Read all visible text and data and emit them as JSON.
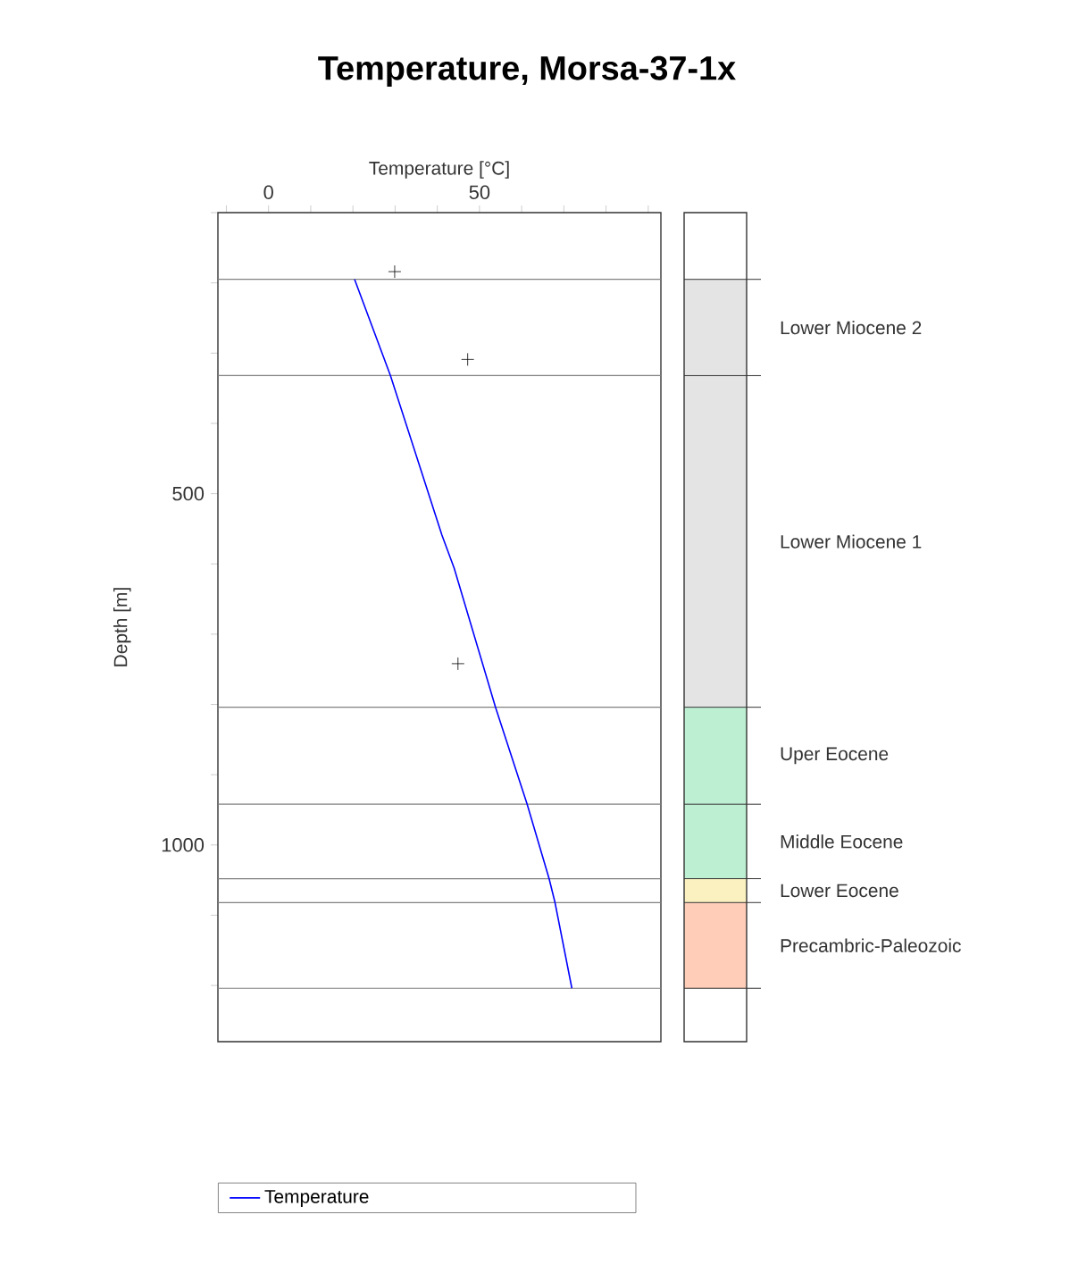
{
  "chart_data": {
    "type": "line",
    "title": "Temperature, Morsa-37-1x",
    "xlabel": "Temperature [°C]",
    "ylabel": "Depth [m]",
    "xlim": [
      -12,
      93
    ],
    "ylim": [
      1280,
      100
    ],
    "xticks": [
      {
        "value": -10,
        "label": null
      },
      0,
      {
        "value": 10,
        "label": null
      },
      {
        "value": 20,
        "label": null
      },
      {
        "value": 30,
        "label": null
      },
      {
        "value": 40,
        "label": null
      },
      50,
      {
        "value": 60,
        "label": null
      },
      {
        "value": 70,
        "label": null
      },
      {
        "value": 80,
        "label": null
      },
      {
        "value": 90,
        "label": null
      }
    ],
    "yticks": [
      {
        "value": 100,
        "label": null
      },
      {
        "value": 200,
        "label": null
      },
      {
        "value": 300,
        "label": null
      },
      {
        "value": 400,
        "label": null
      },
      500,
      {
        "value": 600,
        "label": null
      },
      {
        "value": 700,
        "label": null
      },
      {
        "value": 800,
        "label": null
      },
      {
        "value": 900,
        "label": null
      },
      1000,
      {
        "value": 1100,
        "label": null
      },
      {
        "value": 1200,
        "label": null
      }
    ],
    "series": [
      {
        "name": "Temperature",
        "type": "line",
        "color": "#0000ff",
        "x": [
          20.4,
          28.9,
          41.1,
          44.0,
          53.8,
          61.3,
          66.5,
          67.9,
          71.9
        ],
        "values": [
          195,
          332,
          559,
          606,
          804,
          942,
          1048,
          1082,
          1204
        ]
      },
      {
        "type": "scatter",
        "marker": "cross",
        "color": "#000000",
        "x": [
          29.9,
          47.2,
          44.9
        ],
        "values": [
          184,
          309,
          742
        ]
      }
    ],
    "ref_lines": [
      {
        "axis": "y",
        "value": 195,
        "color": "#808080"
      },
      {
        "axis": "y",
        "value": 332,
        "color": "#808080"
      },
      {
        "axis": "y",
        "value": 804,
        "color": "#808080"
      },
      {
        "axis": "y",
        "value": 942,
        "color": "#808080"
      },
      {
        "axis": "y",
        "value": 1048,
        "color": "#808080"
      },
      {
        "axis": "y",
        "value": 1082,
        "color": "#808080"
      },
      {
        "axis": "y",
        "value": 1204,
        "color": "#808080"
      }
    ],
    "annotations": [
      "Lower Miocene 2",
      "Lower Miocene 1",
      "Uper Eocene",
      "Middle Eocene",
      "Lower Eocene",
      "Precambric-Paleozoic"
    ],
    "legend": "bottom"
  }
}
